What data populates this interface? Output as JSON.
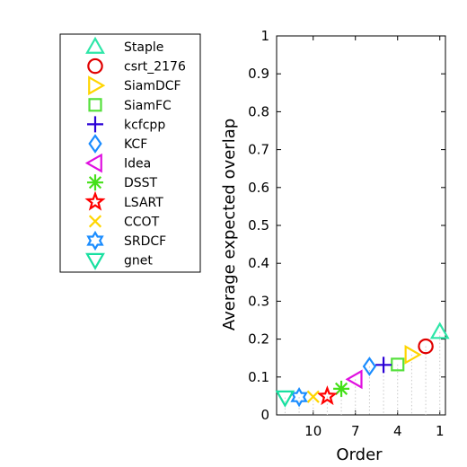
{
  "chart_data": {
    "type": "scatter",
    "title": "",
    "xlabel": "Order",
    "ylabel": "Average expected overlap",
    "xlim": [
      12.6,
      0.6
    ],
    "ylim": [
      0,
      1
    ],
    "x_reversed": true,
    "x_ticks": [
      10,
      7,
      4,
      1
    ],
    "y_ticks": [
      0,
      0.1,
      0.2,
      0.3,
      0.4,
      0.5,
      0.6,
      0.7,
      0.8,
      0.9,
      1
    ],
    "grid": false,
    "legend_position": "outside-left",
    "series": [
      {
        "name": "Staple",
        "x": 1,
        "y": 0.219,
        "marker": "triangle-up",
        "color": "#2ee6a8"
      },
      {
        "name": "csrt_2176",
        "x": 2,
        "y": 0.181,
        "marker": "circle",
        "color": "#e00000"
      },
      {
        "name": "SiamDCF",
        "x": 3,
        "y": 0.159,
        "marker": "triangle-right",
        "color": "#ffd500"
      },
      {
        "name": "SiamFC",
        "x": 4,
        "y": 0.133,
        "marker": "square",
        "color": "#55e03c"
      },
      {
        "name": "kcfcpp",
        "x": 5,
        "y": 0.132,
        "marker": "plus",
        "color": "#2a00d6"
      },
      {
        "name": "KCF",
        "x": 6,
        "y": 0.128,
        "marker": "diamond",
        "color": "#1a8cff"
      },
      {
        "name": "Idea",
        "x": 7,
        "y": 0.094,
        "marker": "triangle-left",
        "color": "#e010e0"
      },
      {
        "name": "DSST",
        "x": 8,
        "y": 0.069,
        "marker": "asterisk",
        "color": "#44e018"
      },
      {
        "name": "LSART",
        "x": 9,
        "y": 0.049,
        "marker": "pentagram",
        "color": "#ff0000"
      },
      {
        "name": "CCOT",
        "x": 10,
        "y": 0.048,
        "marker": "x",
        "color": "#ffd500"
      },
      {
        "name": "SRDCF",
        "x": 11,
        "y": 0.047,
        "marker": "hexagram",
        "color": "#1a8cff"
      },
      {
        "name": "gnet",
        "x": 12,
        "y": 0.046,
        "marker": "triangle-down",
        "color": "#18e0a0"
      }
    ]
  }
}
